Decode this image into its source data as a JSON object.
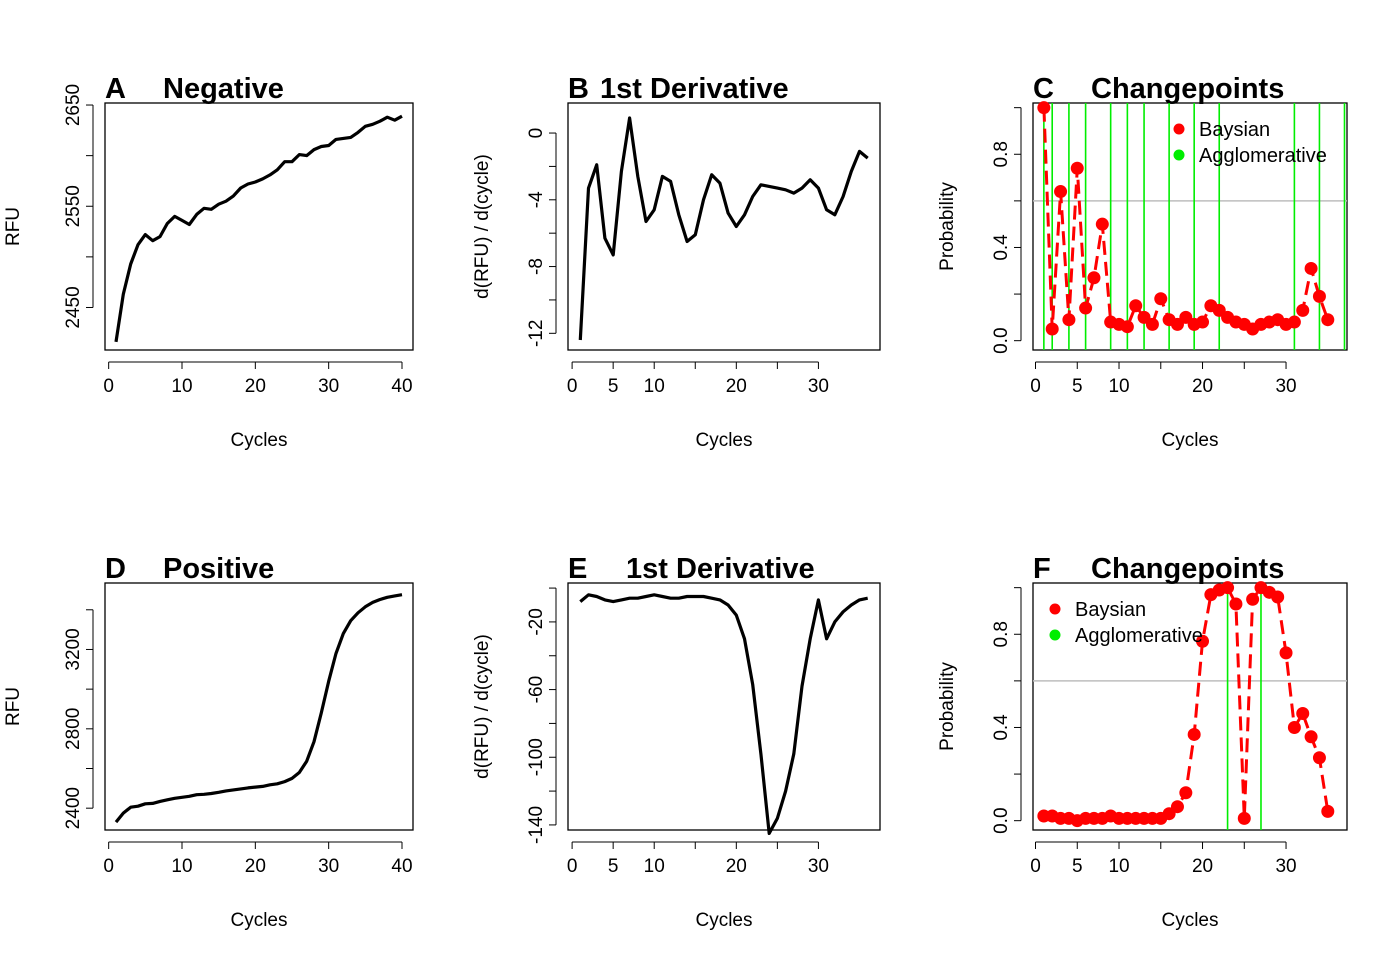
{
  "figure": {
    "colors": {
      "line": "#000000",
      "bayesian": "#ff0000",
      "agglomerative": "#00ee00",
      "threshold": "#bebebe"
    }
  },
  "chart_data": [
    {
      "type": "line",
      "letter": "A",
      "title": "Negative",
      "xlabel": "Cycles",
      "ylabel": "RFU",
      "xlim": [
        -0.5,
        41.5
      ],
      "ylim": [
        2408,
        2652
      ],
      "xticks": [
        0,
        10,
        20,
        30,
        40
      ],
      "yticks": [
        2450,
        2550,
        2650
      ],
      "yticks_minor": [
        2450,
        2500,
        2550,
        2600,
        2650
      ],
      "series": [
        {
          "x": [
            1,
            2,
            3,
            4,
            5,
            6,
            7,
            8,
            9,
            10,
            11,
            12,
            13,
            14,
            15,
            16,
            17,
            18,
            19,
            20,
            21,
            22,
            23,
            24,
            25,
            26,
            27,
            28,
            29,
            30,
            31,
            32,
            33,
            34,
            35,
            36,
            37,
            38,
            39,
            40
          ],
          "values": [
            2416,
            2463,
            2493,
            2512,
            2522,
            2516,
            2520,
            2533,
            2540,
            2536,
            2532,
            2542,
            2548,
            2547,
            2552,
            2555,
            2560,
            2568,
            2572,
            2574,
            2577,
            2581,
            2586,
            2594,
            2594,
            2601,
            2600,
            2606,
            2609,
            2610,
            2616,
            2617,
            2618,
            2623,
            2629,
            2631,
            2634,
            2638,
            2635,
            2639
          ]
        }
      ]
    },
    {
      "type": "line",
      "letter": "B",
      "title": "1st Derivative",
      "xlabel": "Cycles",
      "ylabel": "d(RFU) / d(cycle)",
      "xlim": [
        -0.5,
        37.5
      ],
      "ylim": [
        -13.0,
        1.8
      ],
      "xticks": [
        0,
        5,
        10,
        20,
        30
      ],
      "yticks": [
        0,
        -4,
        -8,
        -12
      ],
      "yticks_minor": [
        0,
        -2,
        -4,
        -6,
        -8,
        -10,
        -12
      ],
      "series": [
        {
          "x": [
            1,
            2,
            3,
            4,
            5,
            6,
            7,
            8,
            9,
            10,
            11,
            12,
            13,
            14,
            15,
            16,
            17,
            18,
            19,
            20,
            21,
            22,
            23,
            24,
            25,
            26,
            27,
            28,
            29,
            30,
            31,
            32,
            33,
            34,
            35,
            36
          ],
          "values": [
            -12.4,
            -3.3,
            -1.9,
            -6.3,
            -7.3,
            -2.3,
            0.9,
            -2.6,
            -5.3,
            -4.6,
            -2.6,
            -2.9,
            -4.9,
            -6.5,
            -6.1,
            -4.0,
            -2.5,
            -3.0,
            -4.8,
            -5.6,
            -4.9,
            -3.8,
            -3.1,
            -3.2,
            -3.3,
            -3.4,
            -3.6,
            -3.3,
            -2.8,
            -3.3,
            -4.6,
            -4.9,
            -3.8,
            -2.3,
            -1.1,
            -1.5
          ]
        }
      ]
    },
    {
      "type": "scatter",
      "letter": "C",
      "title": "Changepoints",
      "xlabel": "Cycles",
      "ylabel": "Probability",
      "xlim": [
        -0.3,
        37.3
      ],
      "ylim": [
        -0.04,
        1.02
      ],
      "xticks": [
        0,
        5,
        10,
        20,
        30
      ],
      "yticks": [
        0.0,
        0.4,
        0.8
      ],
      "yticks_minor": [
        0.0,
        0.2,
        0.4,
        0.6,
        0.8,
        1.0
      ],
      "threshold": 0.6,
      "legend": [
        "Baysian",
        "Agglomerative"
      ],
      "legend_position": "top-right",
      "bayesian": {
        "x": [
          1,
          2,
          3,
          4,
          5,
          6,
          7,
          8,
          9,
          10,
          11,
          12,
          13,
          14,
          15,
          16,
          17,
          18,
          19,
          20,
          21,
          22,
          23,
          24,
          25,
          26,
          27,
          28,
          29,
          30,
          31,
          32,
          33,
          34,
          35
        ],
        "values": [
          1.0,
          0.05,
          0.64,
          0.09,
          0.74,
          0.14,
          0.27,
          0.5,
          0.08,
          0.07,
          0.06,
          0.15,
          0.1,
          0.07,
          0.18,
          0.09,
          0.07,
          0.1,
          0.07,
          0.08,
          0.15,
          0.13,
          0.1,
          0.08,
          0.07,
          0.05,
          0.07,
          0.08,
          0.09,
          0.07,
          0.08,
          0.13,
          0.31,
          0.19,
          0.09
        ]
      },
      "agglomerative_changepoints": [
        1,
        2,
        4,
        6,
        9,
        11,
        13,
        16,
        19,
        22,
        31,
        34,
        37
      ]
    },
    {
      "type": "line",
      "letter": "D",
      "title": "Positive",
      "xlabel": "Cycles",
      "ylabel": "RFU",
      "xlim": [
        -0.5,
        41.5
      ],
      "ylim": [
        2290,
        3535
      ],
      "xticks": [
        0,
        10,
        20,
        30,
        40
      ],
      "yticks": [
        2400,
        2800,
        3200
      ],
      "yticks_minor": [
        2400,
        2600,
        2800,
        3000,
        3200,
        3400
      ],
      "series": [
        {
          "x": [
            1,
            2,
            3,
            4,
            5,
            6,
            7,
            8,
            9,
            10,
            11,
            12,
            13,
            14,
            15,
            16,
            17,
            18,
            19,
            20,
            21,
            22,
            23,
            24,
            25,
            26,
            27,
            28,
            29,
            30,
            31,
            32,
            33,
            34,
            35,
            36,
            37,
            38,
            39,
            40
          ],
          "values": [
            2330,
            2375,
            2405,
            2410,
            2422,
            2424,
            2434,
            2442,
            2450,
            2455,
            2460,
            2468,
            2470,
            2474,
            2480,
            2487,
            2492,
            2497,
            2502,
            2506,
            2510,
            2518,
            2523,
            2534,
            2550,
            2580,
            2637,
            2735,
            2880,
            3040,
            3180,
            3280,
            3345,
            3385,
            3415,
            3437,
            3452,
            3463,
            3470,
            3476
          ]
        }
      ]
    },
    {
      "type": "line",
      "letter": "E",
      "title": "1st Derivative",
      "xlabel": "Cycles",
      "ylabel": "d(RFU) / d(cycle)",
      "xlim": [
        -0.5,
        37.5
      ],
      "ylim": [
        -143,
        3
      ],
      "xticks": [
        0,
        5,
        10,
        20,
        30
      ],
      "yticks": [
        -20,
        -60,
        -100,
        -140
      ],
      "yticks_minor": [
        0,
        -20,
        -40,
        -60,
        -80,
        -100,
        -120,
        -140
      ],
      "series": [
        {
          "x": [
            1,
            2,
            3,
            4,
            5,
            6,
            7,
            8,
            9,
            10,
            11,
            12,
            13,
            14,
            15,
            16,
            17,
            18,
            19,
            20,
            21,
            22,
            23,
            24,
            25,
            26,
            27,
            28,
            29,
            30,
            31,
            32,
            33,
            34,
            35,
            36
          ],
          "values": [
            -8,
            -4,
            -5,
            -7,
            -8,
            -7,
            -6,
            -6,
            -5,
            -4,
            -5,
            -6,
            -6,
            -5,
            -5,
            -5,
            -6,
            -7,
            -10,
            -16,
            -30,
            -57,
            -98,
            -145,
            -136,
            -120,
            -98,
            -58,
            -30,
            -7,
            -30,
            -20,
            -14,
            -10,
            -7,
            -6
          ]
        }
      ]
    },
    {
      "type": "scatter",
      "letter": "F",
      "title": "Changepoints",
      "xlabel": "Cycles",
      "ylabel": "Probability",
      "xlim": [
        -0.3,
        37.3
      ],
      "ylim": [
        -0.04,
        1.02
      ],
      "xticks": [
        0,
        5,
        10,
        20,
        30
      ],
      "yticks": [
        0.0,
        0.4,
        0.8
      ],
      "yticks_minor": [
        0.0,
        0.2,
        0.4,
        0.6,
        0.8,
        1.0
      ],
      "threshold": 0.6,
      "legend": [
        "Baysian",
        "Agglomerative"
      ],
      "legend_position": "top-left",
      "bayesian": {
        "x": [
          1,
          2,
          3,
          4,
          5,
          6,
          7,
          8,
          9,
          10,
          11,
          12,
          13,
          14,
          15,
          16,
          17,
          18,
          19,
          20,
          21,
          22,
          23,
          24,
          25,
          26,
          27,
          28,
          29,
          30,
          31,
          32,
          33,
          34,
          35
        ],
        "values": [
          0.02,
          0.02,
          0.01,
          0.01,
          0.0,
          0.01,
          0.01,
          0.01,
          0.02,
          0.01,
          0.01,
          0.01,
          0.01,
          0.01,
          0.01,
          0.03,
          0.06,
          0.12,
          0.37,
          0.77,
          0.97,
          0.99,
          1.0,
          0.93,
          0.01,
          0.95,
          1.0,
          0.98,
          0.96,
          0.72,
          0.4,
          0.46,
          0.36,
          0.27,
          0.04
        ]
      },
      "agglomerative_changepoints": [
        23,
        27
      ]
    }
  ]
}
